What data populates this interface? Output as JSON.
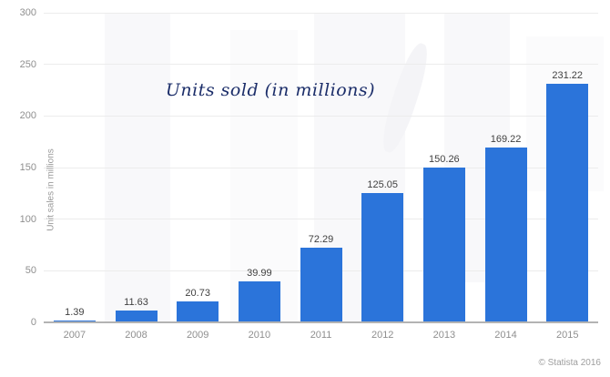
{
  "chart_data": {
    "type": "bar",
    "title": "Units sold (in millions)",
    "categories": [
      "2007",
      "2008",
      "2009",
      "2010",
      "2011",
      "2012",
      "2013",
      "2014",
      "2015"
    ],
    "values": [
      1.39,
      11.63,
      20.73,
      39.99,
      72.29,
      125.05,
      150.26,
      169.22,
      231.22
    ],
    "value_labels": [
      "1.39",
      "11.63",
      "20.73",
      "39.99",
      "72.29",
      "125.05",
      "150.26",
      "169.22",
      "231.22"
    ],
    "xlabel": "",
    "ylabel": "Unit sales in millions",
    "ylim": [
      0,
      300
    ],
    "yticks": [
      0,
      50,
      100,
      150,
      200,
      250,
      300
    ],
    "grid": true,
    "legend_position": "none",
    "bar_color": "#2b74da",
    "title_color": "#1b2d69",
    "value_label_color": "#404040",
    "axis_label_color": "#8f8f8f",
    "gridline_color": "#ececec",
    "axis_line_color": "#b3b3b3"
  },
  "footer": {
    "copyright": "© Statista 2016"
  }
}
